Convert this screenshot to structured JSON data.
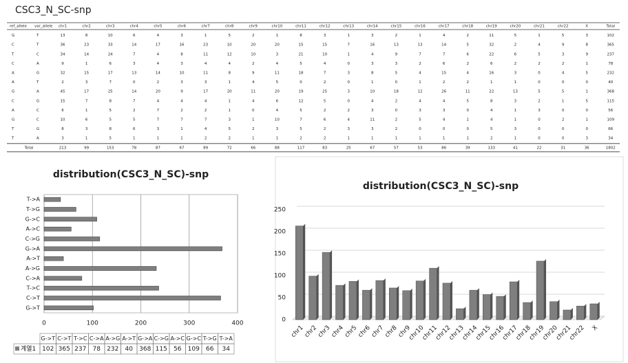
{
  "header": {
    "title": "CSC3_N_SC-snp"
  },
  "table": {
    "columns": [
      "ref_allele",
      "var_allele",
      "chr1",
      "chr2",
      "chr3",
      "chr4",
      "chr5",
      "chr6",
      "chr7",
      "chr8",
      "chr9",
      "chr10",
      "chr11",
      "chr12",
      "chr13",
      "chr14",
      "chr15",
      "chr16",
      "chr17",
      "chr18",
      "chr19",
      "chr20",
      "chr21",
      "chr22",
      "X",
      "Total"
    ],
    "rows": [
      [
        "G",
        "T",
        13,
        8,
        10,
        6,
        4,
        3,
        1,
        5,
        2,
        1,
        8,
        3,
        1,
        3,
        2,
        1,
        4,
        2,
        11,
        5,
        1,
        5,
        3,
        102
      ],
      [
        "C",
        "T",
        36,
        23,
        33,
        14,
        17,
        16,
        23,
        10,
        20,
        20,
        15,
        15,
        7,
        16,
        13,
        13,
        14,
        5,
        32,
        2,
        4,
        9,
        8,
        365
      ],
      [
        "T",
        "C",
        34,
        14,
        24,
        7,
        4,
        8,
        11,
        12,
        10,
        3,
        21,
        10,
        1,
        4,
        9,
        7,
        7,
        6,
        22,
        6,
        5,
        3,
        9,
        237
      ],
      [
        "C",
        "A",
        9,
        1,
        6,
        3,
        4,
        3,
        4,
        4,
        2,
        4,
        5,
        4,
        0,
        3,
        3,
        2,
        6,
        2,
        6,
        2,
        2,
        2,
        1,
        78
      ],
      [
        "A",
        "G",
        32,
        15,
        17,
        13,
        14,
        10,
        11,
        8,
        9,
        11,
        18,
        7,
        3,
        8,
        5,
        4,
        15,
        4,
        16,
        3,
        0,
        4,
        5,
        232
      ],
      [
        "A",
        "T",
        2,
        3,
        7,
        0,
        2,
        3,
        3,
        1,
        4,
        5,
        0,
        2,
        0,
        1,
        0,
        1,
        2,
        2,
        1,
        1,
        0,
        0,
        0,
        40
      ],
      [
        "G",
        "A",
        45,
        17,
        25,
        14,
        20,
        9,
        17,
        20,
        11,
        20,
        19,
        25,
        3,
        10,
        18,
        12,
        26,
        11,
        22,
        13,
        5,
        5,
        1,
        368
      ],
      [
        "C",
        "G",
        15,
        7,
        8,
        7,
        4,
        4,
        4,
        1,
        4,
        6,
        12,
        5,
        0,
        4,
        2,
        4,
        4,
        5,
        8,
        3,
        2,
        1,
        5,
        115
      ],
      [
        "A",
        "C",
        6,
        1,
        5,
        2,
        7,
        2,
        2,
        1,
        0,
        4,
        5,
        2,
        2,
        3,
        0,
        3,
        3,
        0,
        4,
        1,
        3,
        0,
        0,
        56
      ],
      [
        "G",
        "C",
        10,
        6,
        5,
        5,
        7,
        7,
        7,
        3,
        1,
        10,
        7,
        6,
        4,
        11,
        2,
        5,
        4,
        1,
        4,
        1,
        0,
        2,
        1,
        109
      ],
      [
        "T",
        "G",
        8,
        3,
        8,
        6,
        3,
        1,
        4,
        5,
        2,
        3,
        5,
        2,
        3,
        3,
        2,
        0,
        0,
        0,
        5,
        3,
        0,
        0,
        0,
        66
      ],
      [
        "T",
        "A",
        3,
        1,
        5,
        1,
        1,
        1,
        2,
        2,
        1,
        1,
        2,
        2,
        1,
        1,
        1,
        1,
        1,
        1,
        2,
        1,
        0,
        0,
        3,
        34
      ]
    ],
    "total": {
      "label": "Total",
      "values": [
        213,
        99,
        153,
        78,
        87,
        67,
        89,
        72,
        66,
        88,
        117,
        83,
        25,
        67,
        57,
        53,
        86,
        39,
        133,
        41,
        22,
        31,
        36,
        1802
      ]
    }
  },
  "chart_data": [
    {
      "type": "bar",
      "orientation": "horizontal",
      "title": "distribution(CSC3_N_SC)-snp",
      "categories": [
        "G->T",
        "C->T",
        "T->C",
        "C->A",
        "A->G",
        "A->T",
        "G->A",
        "C->G",
        "A->C",
        "G->C",
        "T->G",
        "T->A"
      ],
      "series": [
        {
          "name": "계열1",
          "color": "#7f7f7f",
          "values": [
            102,
            365,
            237,
            78,
            232,
            40,
            368,
            115,
            56,
            109,
            66,
            34
          ]
        }
      ],
      "xlim": [
        0,
        400
      ],
      "xticks": [
        0,
        100,
        200,
        300,
        400
      ],
      "grid": true,
      "data_table": true
    },
    {
      "type": "bar",
      "orientation": "vertical",
      "title": "distribution(CSC3_N_SC)-snp",
      "categories": [
        "chr1",
        "chr2",
        "chr3",
        "chr4",
        "chr5",
        "chr6",
        "chr7",
        "chr8",
        "chr9",
        "chr10",
        "chr11",
        "chr12",
        "chr13",
        "chr14",
        "chr15",
        "chr16",
        "chr17",
        "chr18",
        "chr19",
        "chr20",
        "chr21",
        "chr22",
        "X"
      ],
      "values": [
        213,
        99,
        153,
        78,
        87,
        67,
        89,
        72,
        66,
        88,
        117,
        83,
        25,
        67,
        57,
        53,
        86,
        39,
        133,
        41,
        22,
        31,
        36
      ],
      "color": "#7f7f7f",
      "ylim": [
        0,
        250
      ],
      "yticks": [
        0,
        50,
        100,
        150,
        200,
        250
      ],
      "grid": true
    }
  ]
}
